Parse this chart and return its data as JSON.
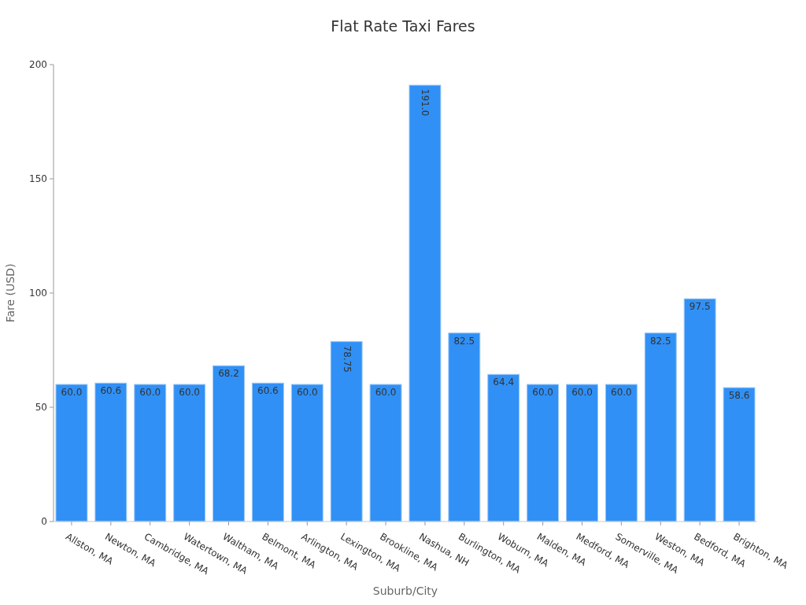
{
  "chart_data": {
    "type": "bar",
    "title": "Flat Rate Taxi Fares",
    "xlabel": "Suburb/City",
    "ylabel": "Fare (USD)",
    "categories": [
      "Allston, MA",
      "Newton, MA",
      "Cambridge, MA",
      "Watertown, MA",
      "Waltham, MA",
      "Belmont, MA",
      "Arlington, MA",
      "Lexington, MA",
      "Brookline, MA",
      "Nashua, NH",
      "Burlington, MA",
      "Woburn, MA",
      "Malden, MA",
      "Medford, MA",
      "Somerville, MA",
      "Weston, MA",
      "Bedford, MA",
      "Brighton, MA"
    ],
    "values": [
      60.0,
      60.6,
      60.0,
      60.0,
      68.2,
      60.6,
      60.0,
      78.75,
      60.0,
      191.0,
      82.5,
      64.4,
      60.0,
      60.0,
      60.0,
      82.5,
      97.5,
      58.6
    ],
    "value_labels": [
      "60.0",
      "60.6",
      "60.0",
      "60.0",
      "68.2",
      "60.6",
      "60.0",
      "78.75",
      "60.0",
      "191.0",
      "82.5",
      "64.4",
      "60.0",
      "60.0",
      "60.0",
      "82.5",
      "97.5",
      "58.6"
    ],
    "color": "#3090f5",
    "ylim": [
      0,
      200
    ],
    "yticks": [
      0,
      50,
      100,
      150,
      200
    ],
    "grid": false
  }
}
